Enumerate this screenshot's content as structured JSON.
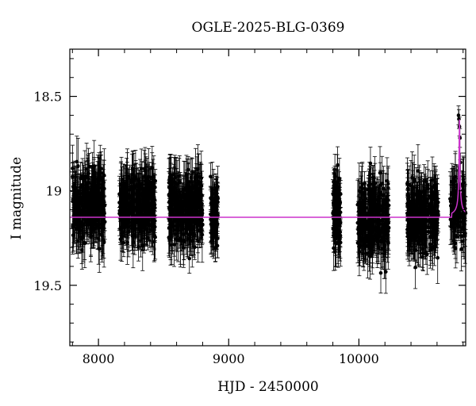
{
  "chart_data": {
    "type": "scatter",
    "title": "OGLE-2025-BLG-0369",
    "xlabel": "HJD - 2450000",
    "ylabel": "I magnitude",
    "xlim": [
      7780,
      10820
    ],
    "ylim": [
      19.82,
      18.25
    ],
    "y_inverted": true,
    "x_ticks": [
      8000,
      9000,
      10000
    ],
    "y_ticks": [
      18.5,
      19,
      19.5
    ],
    "grid": false,
    "colors": {
      "points": "#000000",
      "model": "#cc33cc"
    },
    "seasons": [
      {
        "x": [
          7800,
          8050
        ],
        "y_center": 19.08,
        "y_spread": 0.17,
        "n": 320
      },
      {
        "x": [
          8160,
          8440
        ],
        "y_center": 19.08,
        "y_spread": 0.16,
        "n": 320
      },
      {
        "x": [
          8540,
          8800
        ],
        "y_center": 19.1,
        "y_spread": 0.16,
        "n": 320
      },
      {
        "x": [
          8860,
          8920
        ],
        "y_center": 19.12,
        "y_spread": 0.15,
        "n": 70
      },
      {
        "x": [
          9800,
          9860
        ],
        "y_center": 19.13,
        "y_spread": 0.16,
        "n": 110
      },
      {
        "x": [
          9990,
          10230
        ],
        "y_center": 19.15,
        "y_spread": 0.17,
        "n": 300
      },
      {
        "x": [
          10370,
          10610
        ],
        "y_center": 19.14,
        "y_spread": 0.17,
        "n": 300
      },
      {
        "x": [
          10700,
          10820
        ],
        "y_center": 19.1,
        "y_spread": 0.15,
        "n": 120
      }
    ],
    "event_points": [
      {
        "x": 10765,
        "y": 18.6
      },
      {
        "x": 10768,
        "y": 18.62
      },
      {
        "x": 10772,
        "y": 18.66
      },
      {
        "x": 10776,
        "y": 18.72
      },
      {
        "x": 10780,
        "y": 18.85
      }
    ],
    "model": {
      "baseline": 19.14,
      "peak_x": 10772,
      "peak_mag": 18.62,
      "width": 5
    }
  }
}
